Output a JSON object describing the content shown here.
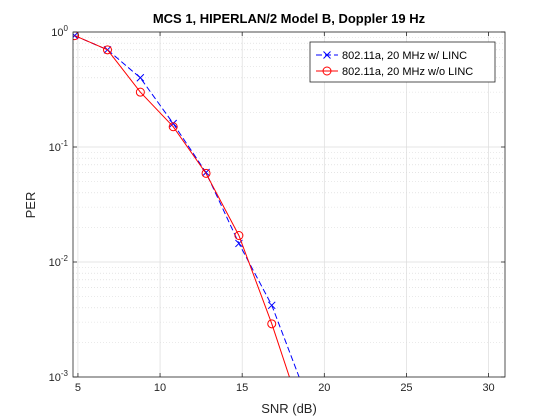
{
  "chart_data": {
    "type": "line",
    "title": "MCS 1, HIPERLAN/2 Model B, Doppler 19 Hz",
    "xlabel": "SNR (dB)",
    "ylabel": "PER",
    "xlim": [
      4.7,
      31
    ],
    "ylim": [
      0.001,
      1
    ],
    "yscale": "log",
    "grid": true,
    "minor_grid": true,
    "legend_position": "top-right",
    "xticks": [
      5,
      10,
      15,
      20,
      25,
      30
    ],
    "xtick_labels": [
      "5",
      "10",
      "15",
      "20",
      "25",
      "30"
    ],
    "yticks": [
      0.001,
      0.01,
      0.1,
      1
    ],
    "ytick_labels": [
      {
        "base": "10",
        "exp": "-3"
      },
      {
        "base": "10",
        "exp": "-2"
      },
      {
        "base": "10",
        "exp": "-1"
      },
      {
        "base": "10",
        "exp": "0"
      }
    ],
    "series": [
      {
        "name": "802.11a, 20 MHz w/ LINC",
        "color": "#0000ff",
        "line_style": "dashed",
        "marker": "x",
        "x": [
          4.8,
          6.8,
          8.8,
          10.8,
          12.8,
          14.8,
          16.8,
          18.8
        ],
        "y": [
          0.93,
          0.7,
          0.4,
          0.16,
          0.06,
          0.0145,
          0.0042,
          0.00075
        ]
      },
      {
        "name": "802.11a, 20 MHz w/o LINC",
        "color": "#ff0000",
        "line_style": "solid",
        "marker": "o",
        "x": [
          4.8,
          6.8,
          8.8,
          10.8,
          12.8,
          14.8,
          16.8,
          18.8
        ],
        "y": [
          0.93,
          0.7,
          0.3,
          0.15,
          0.059,
          0.017,
          0.0029,
          0.0004
        ]
      }
    ]
  }
}
